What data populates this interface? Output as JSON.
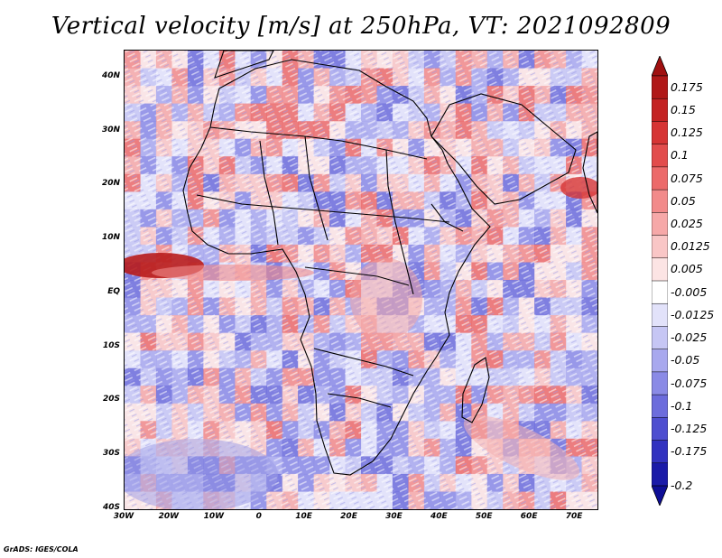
{
  "title": "Vertical velocity [m/s] at 250hPa, VT: 2021092809",
  "footer": "GrADS: IGES/COLA",
  "map": {
    "projection": "latlon",
    "lon_range": [
      -30,
      75
    ],
    "lat_range": [
      -40,
      45
    ],
    "lat_ticks": [
      {
        "value": 40,
        "label": "40N"
      },
      {
        "value": 30,
        "label": "30N"
      },
      {
        "value": 20,
        "label": "20N"
      },
      {
        "value": 10,
        "label": "10N"
      },
      {
        "value": 0,
        "label": "EQ"
      },
      {
        "value": -10,
        "label": "10S"
      },
      {
        "value": -20,
        "label": "20S"
      },
      {
        "value": -30,
        "label": "30S"
      },
      {
        "value": -40,
        "label": "40S"
      }
    ],
    "lon_ticks": [
      {
        "value": -30,
        "label": "30W"
      },
      {
        "value": -20,
        "label": "20W"
      },
      {
        "value": -10,
        "label": "10W"
      },
      {
        "value": 0,
        "label": "0"
      },
      {
        "value": 10,
        "label": "10E"
      },
      {
        "value": 20,
        "label": "20E"
      },
      {
        "value": 30,
        "label": "30E"
      },
      {
        "value": 40,
        "label": "40E"
      },
      {
        "value": 50,
        "label": "50E"
      },
      {
        "value": 60,
        "label": "60E"
      },
      {
        "value": 70,
        "label": "70E"
      }
    ]
  },
  "colorbar": {
    "levels": [
      {
        "label": "0.175",
        "color": "#b01818"
      },
      {
        "label": "0.15",
        "color": "#c42222"
      },
      {
        "label": "0.125",
        "color": "#d63434"
      },
      {
        "label": "0.1",
        "color": "#e24c4c"
      },
      {
        "label": "0.075",
        "color": "#ec6a6a"
      },
      {
        "label": "0.05",
        "color": "#f28a8a"
      },
      {
        "label": "0.025",
        "color": "#f6a8a8"
      },
      {
        "label": "0.0125",
        "color": "#f9c6c6"
      },
      {
        "label": "0.005",
        "color": "#fce4e4"
      },
      {
        "label": "-0.005",
        "color": "#ffffff"
      },
      {
        "label": "-0.0125",
        "color": "#e2e2fa"
      },
      {
        "label": "-0.025",
        "color": "#c6c6f4"
      },
      {
        "label": "-0.05",
        "color": "#a8a8ee"
      },
      {
        "label": "-0.075",
        "color": "#8a8ae6"
      },
      {
        "label": "-0.1",
        "color": "#6c6cdc"
      },
      {
        "label": "-0.125",
        "color": "#4e4ed0"
      },
      {
        "label": "-0.175",
        "color": "#3232c0"
      },
      {
        "label": "-0.2",
        "color": "#1a1aa8"
      }
    ],
    "top_arrow_color": "#a01010",
    "bottom_arrow_color": "#0e0e96"
  }
}
